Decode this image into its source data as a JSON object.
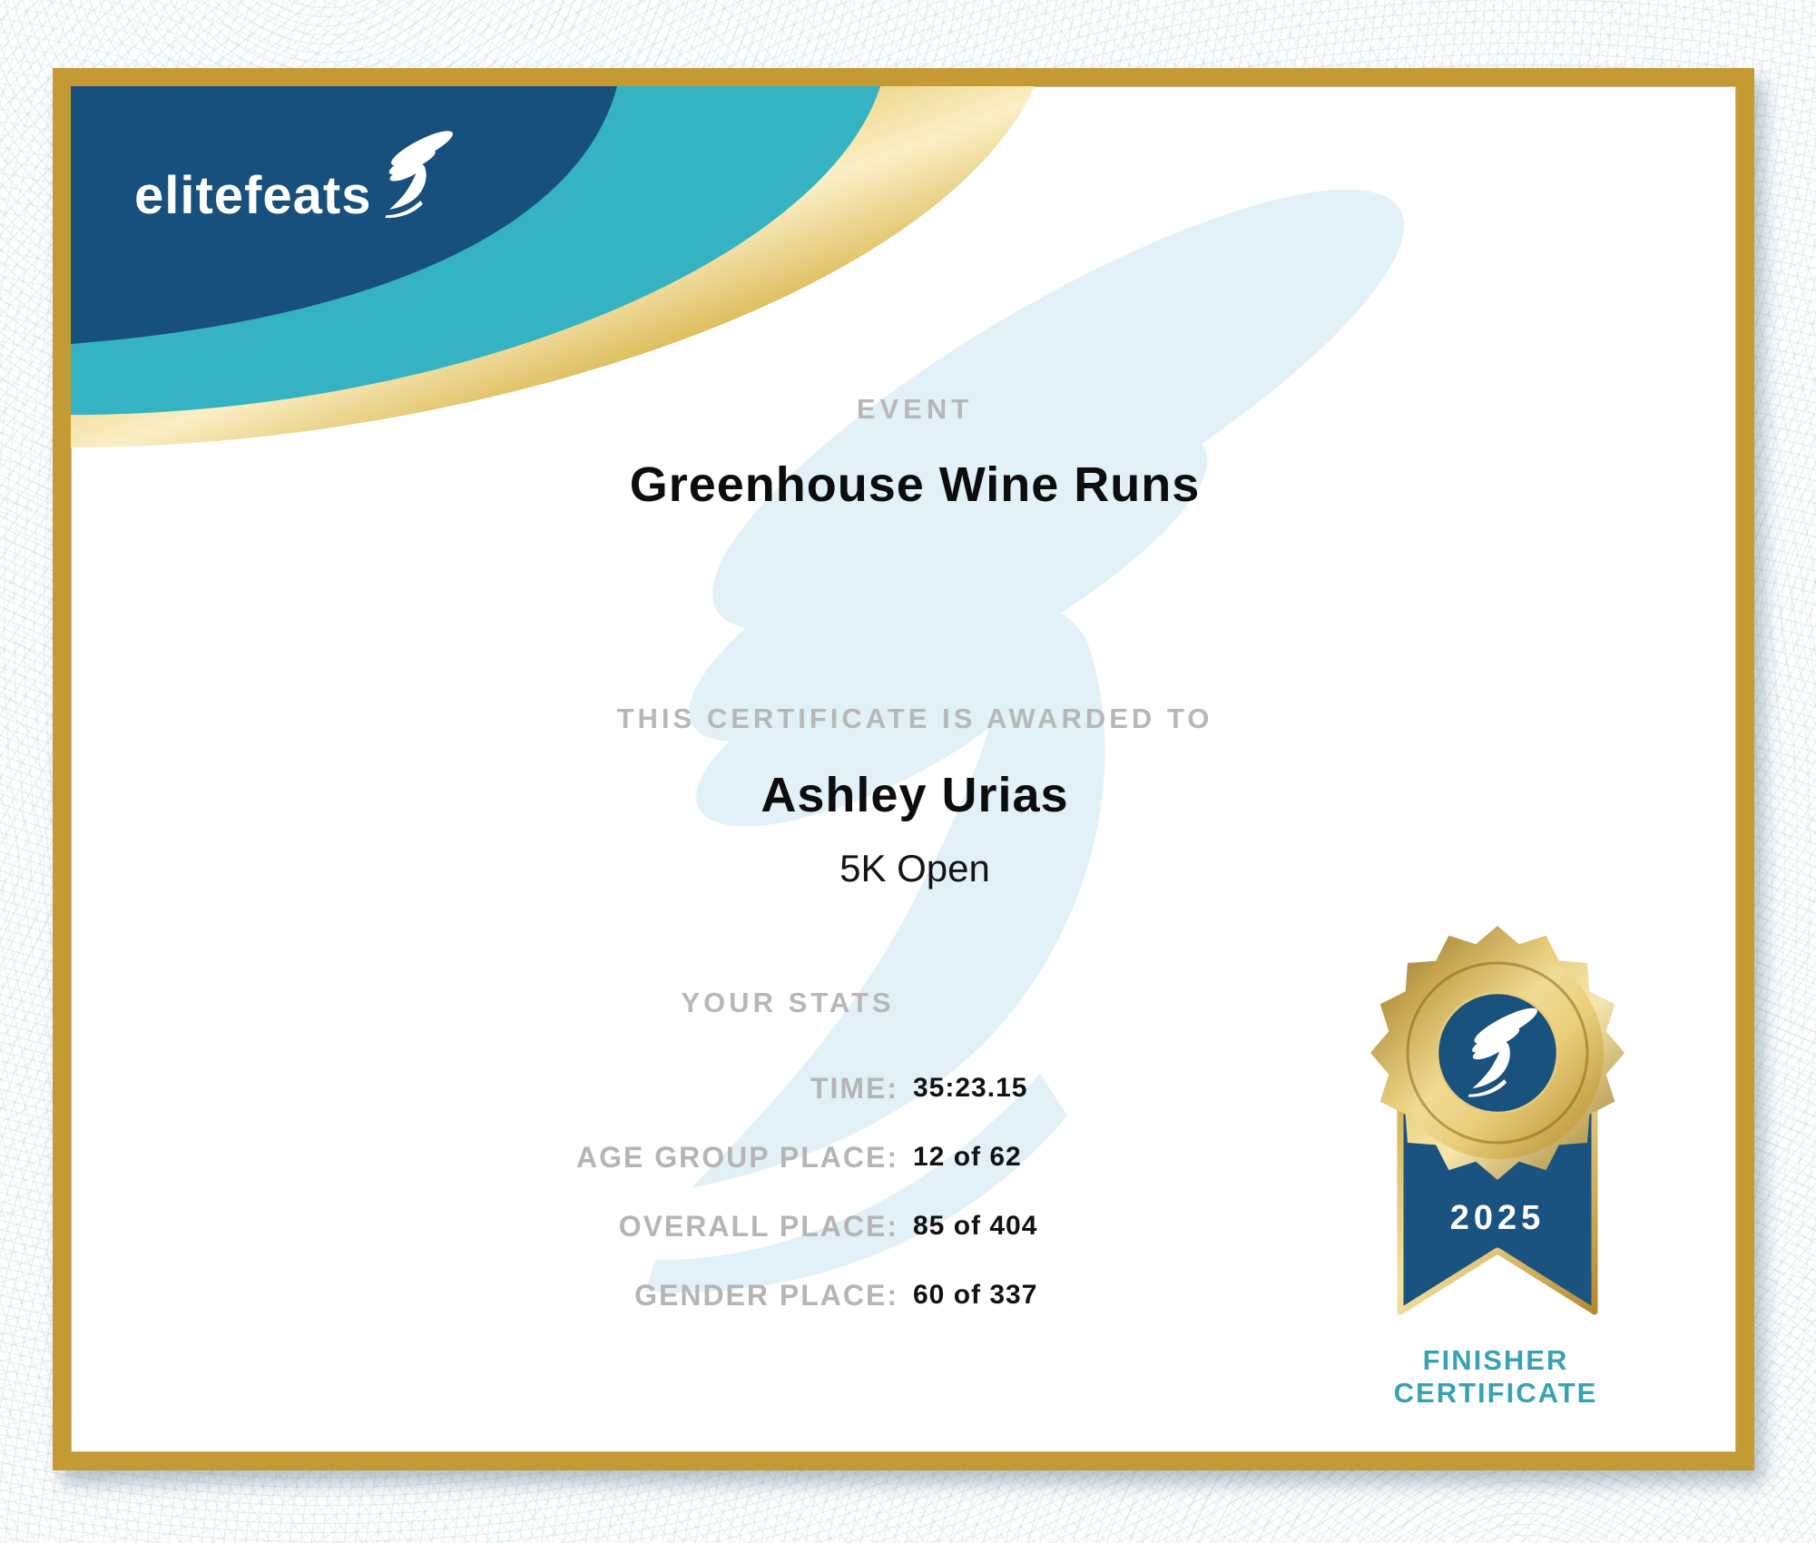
{
  "brand": {
    "logo_text": "elitefeats"
  },
  "sections": {
    "event_label": "EVENT",
    "event_name": "Greenhouse Wine Runs",
    "awarded_label": "THIS CERTIFICATE IS AWARDED TO",
    "recipient_name": "Ashley Urias",
    "division": "5K Open",
    "stats_label": "YOUR STATS"
  },
  "stats": [
    {
      "label": "TIME:",
      "value": "35:23.15"
    },
    {
      "label": "AGE GROUP PLACE:",
      "value": "12 of 62"
    },
    {
      "label": "OVERALL PLACE:",
      "value": "85 of 404"
    },
    {
      "label": "GENDER PLACE:",
      "value": "60 of 337"
    }
  ],
  "badge": {
    "year": "2025",
    "label_line1": "FINISHER",
    "label_line2": "CERTIFICATE"
  },
  "icons": {
    "logo_icon": "winged-foot",
    "watermark_icon": "winged-foot",
    "medal_icon": "winged-foot"
  },
  "colors": {
    "navy": "#17507c",
    "teal": "#35b3c2",
    "frame_gold": "#c49a33",
    "gray_label": "#b5b5b5",
    "finisher_teal": "#38a2b4",
    "watermark_blue": "#e2f1f7",
    "text_black": "#0d0d0d"
  }
}
